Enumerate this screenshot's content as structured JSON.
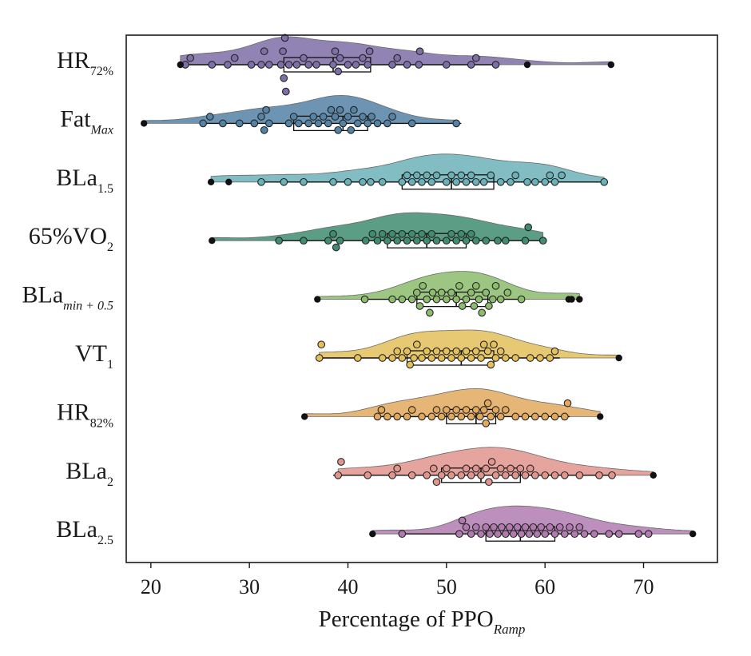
{
  "chart_data": {
    "type": "raincloud",
    "xlabel_main": "Percentage of PPO",
    "xlabel_sub": "Ramp",
    "xlim": [
      17.5,
      77.5
    ],
    "xticks": [
      20,
      30,
      40,
      50,
      60,
      70
    ],
    "grid": false,
    "categories": [
      {
        "main": "HR",
        "sub": "72%",
        "sub_italic": false
      },
      {
        "main": "Fat",
        "sub": "Max",
        "sub_italic": true
      },
      {
        "main": "BLa",
        "sub": "1.5",
        "sub_italic": false
      },
      {
        "main": "65%VO",
        "sub": "2",
        "sub_italic": false
      },
      {
        "main": "BLa",
        "sub": "min + 0.5",
        "sub_italic": true
      },
      {
        "main": "VT",
        "sub": "1",
        "sub_italic": false
      },
      {
        "main": "HR",
        "sub": "82%",
        "sub_italic": false
      },
      {
        "main": "BLa",
        "sub": "2",
        "sub_italic": false
      },
      {
        "main": "BLa",
        "sub": "2.5",
        "sub_italic": false
      }
    ],
    "series": [
      {
        "color": "#7e6fa8",
        "box": {
          "whisker_low": 23.2,
          "q1": 33.5,
          "median": 38.5,
          "q3": 42.3,
          "whisker_high": 55.0
        },
        "outliers": [
          23.0,
          58.2,
          66.7
        ],
        "points": [
          23.5,
          24.0,
          26.2,
          27.8,
          28.5,
          30.2,
          31.2,
          31.5,
          32.0,
          33.2,
          33.4,
          33.5,
          33.6,
          33.7,
          34.0,
          34.8,
          35.5,
          36.0,
          36.8,
          38.5,
          38.7,
          39.0,
          39.2,
          40.0,
          40.8,
          41.5,
          42.0,
          42.2,
          44.5,
          45.0,
          46.0,
          47.2,
          47.3,
          50.0,
          52.5,
          53.0,
          55.0
        ]
      },
      {
        "color": "#5483a6",
        "box": {
          "whisker_low": 25.0,
          "q1": 34.5,
          "median": 39.5,
          "q3": 42.0,
          "whisker_high": 51.5
        },
        "outliers": [
          19.3
        ],
        "points": [
          25.3,
          26.0,
          27.3,
          29.0,
          30.5,
          31.2,
          31.5,
          31.7,
          32.0,
          34.0,
          34.5,
          35.0,
          36.0,
          36.5,
          37.0,
          37.5,
          38.0,
          38.3,
          38.7,
          39.0,
          39.2,
          39.5,
          40.0,
          40.3,
          40.6,
          41.0,
          41.5,
          42.0,
          42.4,
          43.0,
          44.0,
          44.5,
          46.5,
          51.0
        ]
      },
      {
        "color": "#6bb2b8",
        "box": {
          "whisker_low": 31.0,
          "q1": 45.5,
          "median": 50.5,
          "q3": 54.8,
          "whisker_high": 66.0
        },
        "outliers": [
          26.1,
          27.9
        ],
        "points": [
          31.2,
          33.5,
          35.5,
          38.5,
          40.0,
          41.5,
          42.3,
          43.5,
          45.5,
          46.0,
          46.5,
          47.0,
          47.5,
          48.0,
          48.5,
          49.0,
          50.0,
          50.5,
          51.0,
          51.5,
          52.0,
          52.5,
          53.0,
          53.8,
          54.5,
          55.5,
          56.5,
          57.0,
          58.2,
          59.0,
          60.0,
          60.5,
          61.0,
          61.7,
          66.0
        ]
      },
      {
        "color": "#3f8c71",
        "box": {
          "whisker_low": 33.0,
          "q1": 44.0,
          "median": 48.0,
          "q3": 52.0,
          "whisker_high": 60.0
        },
        "outliers": [
          26.2
        ],
        "points": [
          33.0,
          35.5,
          38.0,
          38.5,
          38.8,
          39.2,
          41.8,
          42.5,
          43.0,
          43.5,
          44.0,
          44.5,
          45.0,
          45.5,
          46.0,
          46.5,
          47.0,
          47.5,
          48.0,
          48.5,
          49.0,
          50.0,
          50.5,
          51.0,
          51.5,
          52.0,
          52.5,
          53.0,
          54.0,
          55.2,
          56.0,
          58.0,
          58.3,
          59.8
        ]
      },
      {
        "color": "#8cbc6c",
        "box": {
          "whisker_low": 41.5,
          "q1": 47.0,
          "median": 51.0,
          "q3": 54.2,
          "whisker_high": 57.6
        },
        "outliers": [
          36.9,
          62.4,
          62.7,
          63.5
        ],
        "points": [
          41.7,
          44.5,
          45.5,
          46.5,
          47.0,
          47.3,
          47.6,
          48.0,
          48.3,
          48.6,
          49.0,
          49.5,
          50.0,
          50.5,
          51.0,
          51.3,
          51.6,
          52.0,
          52.5,
          52.8,
          53.0,
          53.3,
          53.6,
          54.0,
          54.3,
          54.7,
          55.0,
          55.5,
          56.2,
          57.6
        ]
      },
      {
        "color": "#e4c05b",
        "box": {
          "whisker_low": 37.0,
          "q1": 46.0,
          "median": 51.5,
          "q3": 54.8,
          "whisker_high": 61.5
        },
        "outliers": [
          67.5
        ],
        "points": [
          37.1,
          37.3,
          41.0,
          43.5,
          44.5,
          45.0,
          45.5,
          46.0,
          46.3,
          46.7,
          47.0,
          47.5,
          48.0,
          48.5,
          49.0,
          49.5,
          50.0,
          50.5,
          51.0,
          51.5,
          52.0,
          52.5,
          53.0,
          53.5,
          53.8,
          54.2,
          54.5,
          54.8,
          55.0,
          55.5,
          56.0,
          57.0,
          58.5,
          59.5,
          60.5,
          61.0
        ]
      },
      {
        "color": "#e2a95e",
        "box": {
          "whisker_low": 43.0,
          "q1": 50.0,
          "median": 53.0,
          "q3": 55.0,
          "whisker_high": 62.5
        },
        "outliers": [
          35.6,
          65.6
        ],
        "points": [
          43.0,
          43.4,
          44.0,
          45.0,
          46.0,
          46.5,
          47.5,
          48.5,
          49.0,
          49.5,
          50.0,
          50.5,
          51.0,
          51.5,
          52.0,
          52.5,
          53.0,
          53.4,
          53.8,
          54.0,
          54.2,
          54.5,
          55.0,
          55.5,
          56.0,
          57.0,
          58.0,
          59.0,
          60.0,
          61.0,
          62.0,
          62.3
        ]
      },
      {
        "color": "#e0958d",
        "box": {
          "whisker_low": 38.5,
          "q1": 49.5,
          "median": 53.5,
          "q3": 57.5,
          "whisker_high": 66.8
        },
        "outliers": [
          71.0
        ],
        "points": [
          39.0,
          39.3,
          42.0,
          44.5,
          45.0,
          46.5,
          48.0,
          48.7,
          49.0,
          49.5,
          50.0,
          50.5,
          51.5,
          52.0,
          52.5,
          53.0,
          53.5,
          54.0,
          54.3,
          54.6,
          55.0,
          55.5,
          56.0,
          56.5,
          57.0,
          57.5,
          58.0,
          58.5,
          59.0,
          60.0,
          61.0,
          62.0,
          63.5,
          65.5,
          66.8
        ]
      },
      {
        "color": "#b27bb0",
        "box": {
          "whisker_low": 45.5,
          "q1": 54.0,
          "median": 57.5,
          "q3": 61.0,
          "whisker_high": 70.5
        },
        "outliers": [
          42.5,
          75.0
        ],
        "points": [
          45.5,
          51.3,
          51.6,
          52.0,
          52.5,
          53.0,
          53.5,
          54.0,
          54.4,
          54.8,
          55.2,
          55.6,
          56.0,
          56.4,
          56.8,
          57.2,
          57.6,
          58.0,
          58.4,
          58.8,
          59.2,
          59.6,
          60.0,
          60.5,
          61.0,
          61.5,
          62.0,
          62.5,
          63.0,
          63.5,
          64.0,
          65.0,
          66.5,
          67.5,
          69.5,
          70.5
        ]
      }
    ]
  }
}
